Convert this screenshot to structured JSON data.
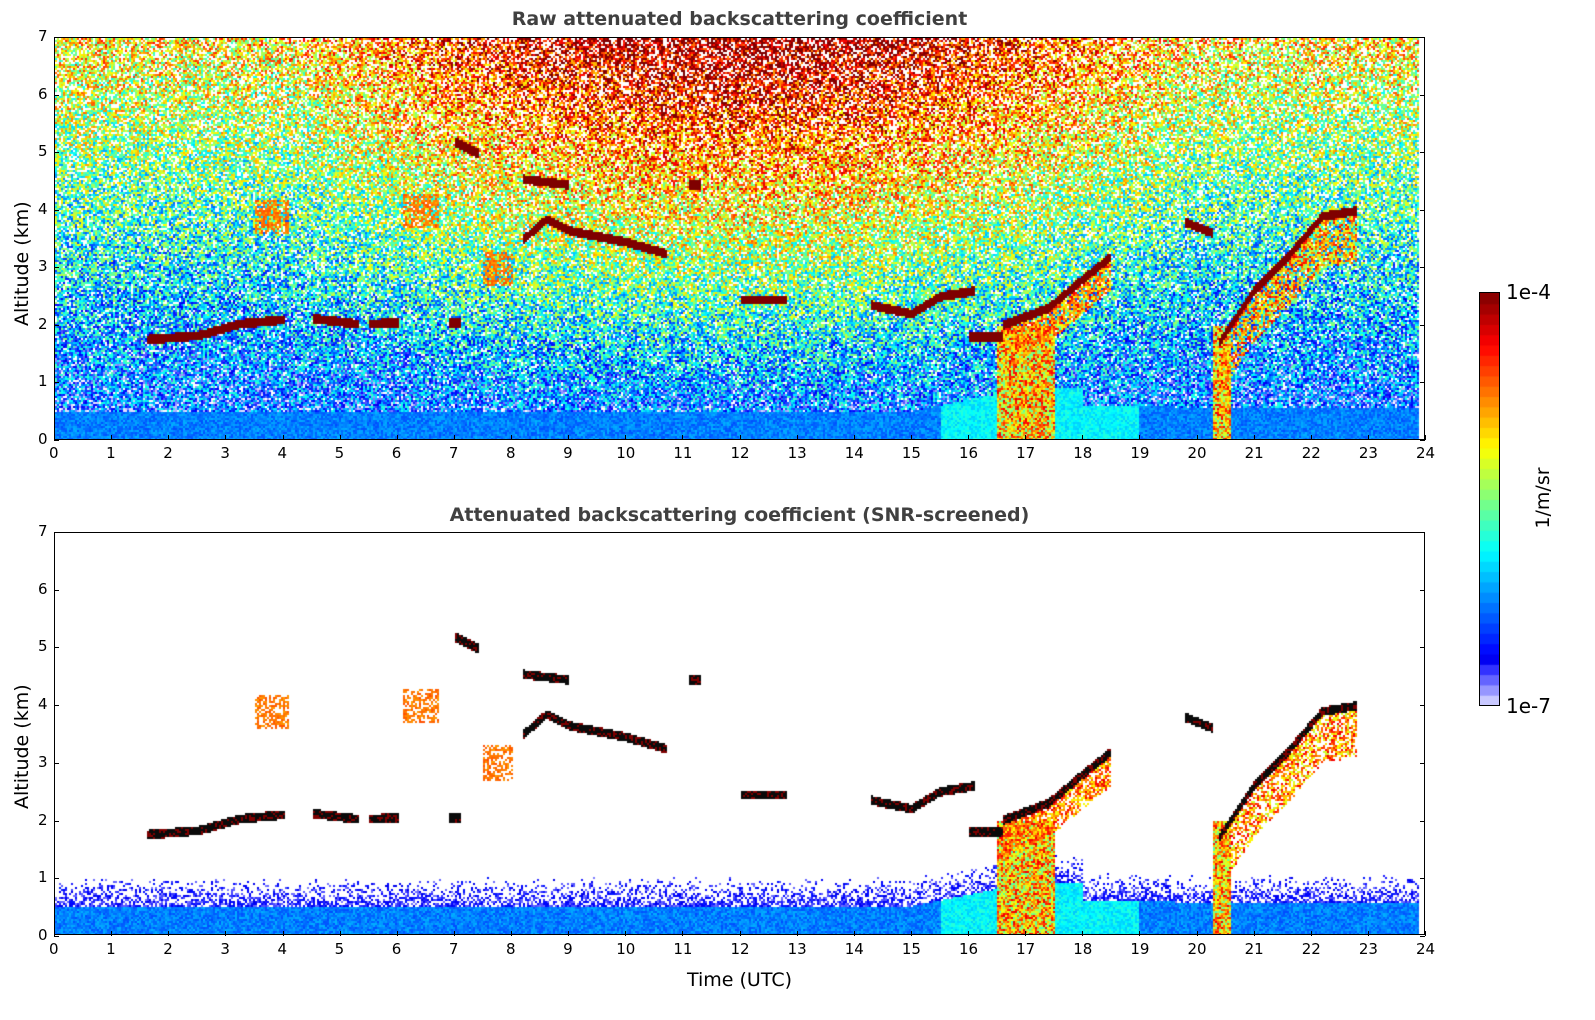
{
  "chart_data": [
    {
      "type": "heatmap",
      "title": "Raw attenuated backscattering coefficient",
      "xlabel": "",
      "ylabel": "Altitude (km)",
      "xlim": [
        0,
        24
      ],
      "ylim": [
        0,
        7
      ],
      "xticks": [
        "0",
        "1",
        "2",
        "3",
        "4",
        "5",
        "6",
        "7",
        "8",
        "9",
        "10",
        "11",
        "12",
        "13",
        "14",
        "15",
        "16",
        "17",
        "18",
        "19",
        "20",
        "21",
        "22",
        "23",
        "24"
      ],
      "yticks": [
        "0",
        "1",
        "2",
        "3",
        "4",
        "5",
        "6",
        "7"
      ],
      "screened": false
    },
    {
      "type": "heatmap",
      "title": "Attenuated backscattering coefficient (SNR-screened)",
      "xlabel": "Time (UTC)",
      "ylabel": "Altitude (km)",
      "xlim": [
        0,
        24
      ],
      "ylim": [
        0,
        7
      ],
      "xticks": [
        "0",
        "1",
        "2",
        "3",
        "4",
        "5",
        "6",
        "7",
        "8",
        "9",
        "10",
        "11",
        "12",
        "13",
        "14",
        "15",
        "16",
        "17",
        "18",
        "19",
        "20",
        "21",
        "22",
        "23",
        "24"
      ],
      "yticks": [
        "0",
        "1",
        "2",
        "3",
        "4",
        "5",
        "6",
        "7"
      ],
      "screened": true
    }
  ],
  "colorbar": {
    "label": "1/m/sr",
    "max_label": "1e-4",
    "min_label": "1e-7",
    "scale": "log",
    "range": [
      1e-07,
      0.0001
    ]
  },
  "cloud_layers": [
    {
      "t": [
        1.6,
        2.5,
        3.2,
        4.0
      ],
      "z": [
        1.75,
        1.82,
        2.02,
        2.1
      ]
    },
    {
      "t": [
        4.5,
        5.3
      ],
      "z": [
        2.12,
        2.02
      ]
    },
    {
      "t": [
        5.5,
        6.0
      ],
      "z": [
        2.02,
        2.05
      ]
    },
    {
      "t": [
        6.9,
        7.1
      ],
      "z": [
        2.05,
        2.05
      ]
    },
    {
      "t": [
        8.2,
        8.6,
        9.0,
        10.0,
        10.7
      ],
      "z": [
        3.5,
        3.85,
        3.65,
        3.45,
        3.25
      ]
    },
    {
      "t": [
        7.0,
        7.4
      ],
      "z": [
        5.2,
        5.0
      ]
    },
    {
      "t": [
        8.2,
        9.0
      ],
      "z": [
        4.55,
        4.45
      ]
    },
    {
      "t": [
        11.1,
        11.3
      ],
      "z": [
        4.45,
        4.45
      ]
    },
    {
      "t": [
        12.0,
        12.8
      ],
      "z": [
        2.45,
        2.45
      ]
    },
    {
      "t": [
        14.3,
        15.0,
        15.5,
        16.1
      ],
      "z": [
        2.35,
        2.2,
        2.5,
        2.6
      ]
    },
    {
      "t": [
        16.0,
        16.6
      ],
      "z": [
        1.8,
        1.8
      ]
    },
    {
      "t": [
        16.6,
        17.4,
        18.0,
        18.5
      ],
      "z": [
        2.0,
        2.3,
        2.8,
        3.2
      ]
    },
    {
      "t": [
        19.8,
        20.3
      ],
      "z": [
        3.8,
        3.6
      ]
    },
    {
      "t": [
        20.4,
        21.0,
        21.6,
        22.2,
        22.8
      ],
      "z": [
        1.7,
        2.6,
        3.2,
        3.9,
        4.0
      ]
    }
  ],
  "aerosol_patches": [
    {
      "t": [
        3.5,
        4.1
      ],
      "z": 3.9
    },
    {
      "t": [
        6.1,
        6.7
      ],
      "z": 4.0
    },
    {
      "t": [
        7.5,
        8.0
      ],
      "z": 3.0
    }
  ],
  "precipitation": [
    {
      "t": [
        16.5,
        17.5
      ]
    },
    {
      "t": [
        20.3,
        20.6
      ]
    }
  ]
}
